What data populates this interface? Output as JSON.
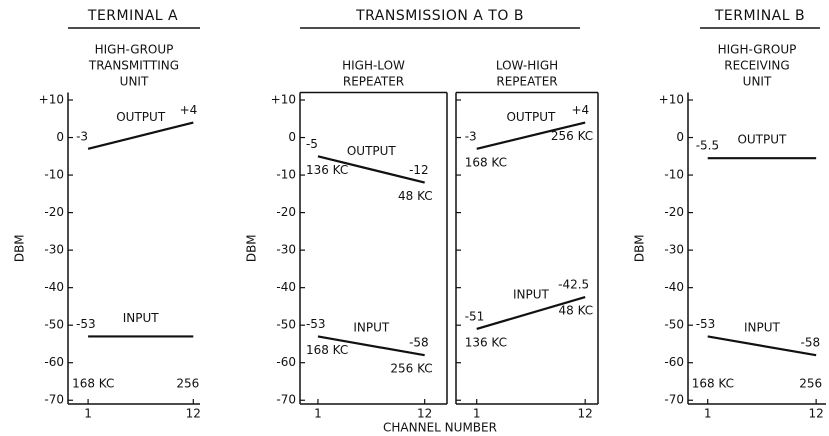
{
  "figure": {
    "headings": [
      "TERMINAL A",
      "TRANSMISSION A TO B",
      "TERMINAL B"
    ],
    "xlabel": "CHANNEL NUMBER"
  },
  "chart_data": [
    {
      "type": "line",
      "title": [
        "HIGH-GROUP",
        "TRANSMITTING",
        "UNIT"
      ],
      "ylabel": "DBM",
      "x": [
        1,
        12
      ],
      "xlim": [
        -1.1,
        12.7
      ],
      "xticks": [
        1,
        12
      ],
      "ylim": [
        -71,
        12
      ],
      "yticks": [
        {
          "value": 10,
          "label": "+10"
        },
        0,
        -10,
        -20,
        -30,
        -40,
        -50,
        -60,
        -70
      ],
      "tick_labels": true,
      "frame": false,
      "color": "#111111",
      "end_labels": [
        "168 KC",
        "256"
      ],
      "series": [
        {
          "name": "OUTPUT",
          "values": [
            -3,
            4
          ],
          "value_labels": [
            "-3",
            "+4"
          ]
        },
        {
          "name": "INPUT",
          "values": [
            -53,
            -53
          ],
          "value_labels": [
            "-53",
            null
          ]
        }
      ]
    },
    {
      "type": "line",
      "title": [
        "HIGH-LOW",
        "REPEATER"
      ],
      "ylabel": "DBM",
      "x": [
        1,
        12
      ],
      "xlim": [
        -0.85,
        14.3
      ],
      "xticks": [
        1,
        12
      ],
      "ylim": [
        -71,
        12
      ],
      "yticks": [
        {
          "value": 10,
          "label": "+10"
        },
        0,
        -10,
        -20,
        -30,
        -40,
        -50,
        -60,
        -70
      ],
      "tick_labels": true,
      "frame": true,
      "color": "#111111",
      "series": [
        {
          "name": "OUTPUT",
          "values": [
            -5,
            -12
          ],
          "value_labels": [
            "-5",
            "-12"
          ],
          "end_labels": [
            "136 KC",
            "48 KC"
          ]
        },
        {
          "name": "INPUT",
          "values": [
            -53,
            -58
          ],
          "value_labels": [
            "-53",
            "-58"
          ],
          "end_labels": [
            "168 KC",
            "256 KC"
          ]
        }
      ]
    },
    {
      "type": "line",
      "title": [
        "LOW-HIGH",
        "REPEATER"
      ],
      "x": [
        1,
        12
      ],
      "xlim": [
        -1.1,
        13.3
      ],
      "xticks": [
        1,
        12
      ],
      "ylim": [
        -71,
        12
      ],
      "yticks": [
        10,
        0,
        -10,
        -20,
        -30,
        -40,
        -50,
        -60,
        -70
      ],
      "tick_labels": false,
      "frame": true,
      "color": "#111111",
      "series": [
        {
          "name": "OUTPUT",
          "values": [
            -3,
            4
          ],
          "value_labels": [
            "-3",
            "+4"
          ],
          "end_labels": [
            "168 KC",
            "256 KC"
          ]
        },
        {
          "name": "INPUT",
          "values": [
            -51,
            -42.5
          ],
          "value_labels": [
            "-51",
            "-42.5"
          ],
          "end_labels": [
            "136 KC",
            "48 KC"
          ]
        }
      ]
    },
    {
      "type": "line",
      "title": [
        "HIGH-GROUP",
        "RECEIVING",
        "UNIT"
      ],
      "ylabel": "DBM",
      "x": [
        1,
        12
      ],
      "xlim": [
        -1,
        13
      ],
      "xticks": [
        1,
        12
      ],
      "ylim": [
        -71,
        12
      ],
      "yticks": [
        {
          "value": 10,
          "label": "+10"
        },
        0,
        -10,
        -20,
        -30,
        -40,
        -50,
        -60,
        -70
      ],
      "tick_labels": true,
      "frame": false,
      "color": "#111111",
      "end_labels": [
        "168 KC",
        "256"
      ],
      "series": [
        {
          "name": "OUTPUT",
          "values": [
            -5.5,
            -5.5
          ],
          "value_labels": [
            "-5.5",
            null
          ]
        },
        {
          "name": "INPUT",
          "values": [
            -53,
            -58
          ],
          "value_labels": [
            "-53",
            "-58"
          ]
        }
      ]
    }
  ]
}
